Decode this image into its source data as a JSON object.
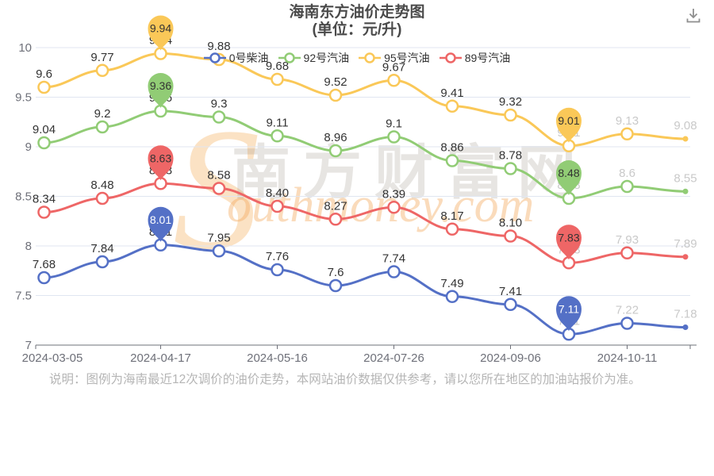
{
  "header": {
    "title": "海南东方油价走势图",
    "subtitle": "(单位：元/升)"
  },
  "toolbar": {
    "download_icon": "save-as-image"
  },
  "watermark": {
    "text_cn": "南方财富网",
    "text_en": "Southmoney.com"
  },
  "footer": {
    "note": "说明：图例为海南最近12次调价的油价走势，本网站油价数据仅供参考，请以您所在地区的加油站报价为准。"
  },
  "chart_data": {
    "type": "line",
    "title": "海南东方油价走势图",
    "unit": "元/升",
    "legend_position": "top",
    "grid": true,
    "n_points": 12,
    "x_tick_labels": [
      "2024-03-05",
      "2024-04-17",
      "2024-05-16",
      "2024-07-26",
      "2024-09-06",
      "2024-10-11"
    ],
    "x_tick_point_indices": [
      0,
      2,
      4,
      6,
      8,
      10
    ],
    "y_ticks": [
      7,
      7.5,
      8,
      8.5,
      9,
      9.5,
      10
    ],
    "ylim": [
      7,
      10
    ],
    "max_pin_index": 2,
    "min_pin_index": 9,
    "light_label_from_index": 9,
    "colors": {
      "axis_text": "#6E7079",
      "grid_line": "#E0E6F1",
      "label_dark": "#333333",
      "label_light": "#c9c9c9"
    },
    "series": [
      {
        "id": "0-diesel",
        "name": "0号柴油",
        "color": "#5470c6",
        "pin_text_color": "#ffffff",
        "values": [
          7.68,
          7.84,
          8.01,
          7.95,
          7.76,
          7.6,
          7.74,
          7.49,
          7.41,
          7.11,
          7.22,
          7.18
        ],
        "labels": [
          "7.68",
          "7.84",
          "8.01",
          "7.95",
          "7.76",
          "7.6",
          "7.74",
          "7.49",
          "7.41",
          "7.11",
          "7.22",
          "7.18"
        ]
      },
      {
        "id": "92-gasoline",
        "name": "92号汽油",
        "color": "#91cc75",
        "pin_text_color": "#333333",
        "values": [
          9.04,
          9.2,
          9.36,
          9.3,
          9.11,
          8.96,
          9.1,
          8.86,
          8.78,
          8.48,
          8.6,
          8.55
        ],
        "labels": [
          "9.04",
          "9.2",
          "9.36",
          "9.3",
          "9.11",
          "8.96",
          "9.1",
          "8.86",
          "8.78",
          "8.48",
          "8.6",
          "8.55"
        ]
      },
      {
        "id": "95-gasoline",
        "name": "95号汽油",
        "color": "#fac858",
        "pin_text_color": "#333333",
        "values": [
          9.6,
          9.77,
          9.94,
          9.88,
          9.68,
          9.52,
          9.67,
          9.41,
          9.32,
          9.01,
          9.13,
          9.08
        ],
        "labels": [
          "9.6",
          "9.77",
          "9.94",
          "9.88",
          "9.68",
          "9.52",
          "9.67",
          "9.41",
          "9.32",
          "9.01",
          "9.13",
          "9.08"
        ]
      },
      {
        "id": "89-gasoline",
        "name": "89号汽油",
        "color": "#ee6666",
        "pin_text_color": "#333333",
        "values": [
          8.34,
          8.48,
          8.63,
          8.58,
          8.4,
          8.27,
          8.39,
          8.17,
          8.1,
          7.83,
          7.93,
          7.89
        ],
        "labels": [
          "8.34",
          "8.48",
          "8.63",
          "8.58",
          "8.40",
          "8.27",
          "8.39",
          "8.17",
          "8.10",
          "7.83",
          "7.93",
          "7.89"
        ]
      }
    ]
  }
}
